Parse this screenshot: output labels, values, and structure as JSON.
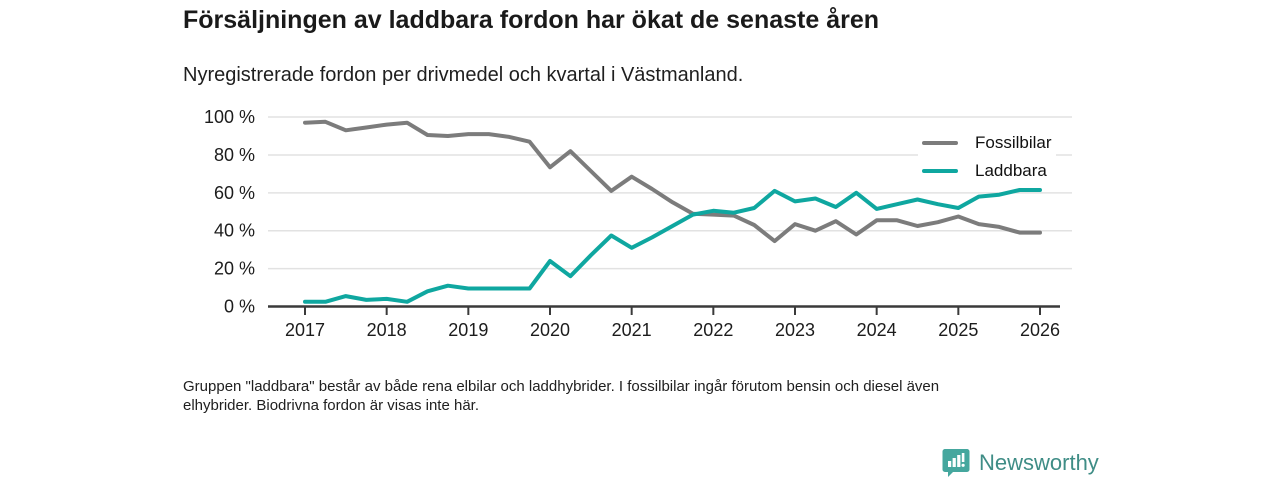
{
  "header": {
    "title": "Försäljningen av laddbara fordon har ökat de senaste åren",
    "subtitle": "Nyregistrerade fordon per drivmedel och kvartal i Västmanland."
  },
  "chart_data": {
    "type": "line",
    "title": "Försäljningen av laddbara fordon har ökat de senaste åren",
    "subtitle": "Nyregistrerade fordon per drivmedel och kvartal i Västmanland.",
    "x_unit": "quarter",
    "x_start": "2017 Q1",
    "x_end": "2026 Q1",
    "ylim": [
      0,
      100
    ],
    "grid": true,
    "legend_position": "top-right",
    "y_ticks": [
      {
        "value": 0,
        "label": "0 %"
      },
      {
        "value": 20,
        "label": "20 %"
      },
      {
        "value": 40,
        "label": "40 %"
      },
      {
        "value": 60,
        "label": "60 %"
      },
      {
        "value": 80,
        "label": "80 %"
      },
      {
        "value": 100,
        "label": "100 %"
      }
    ],
    "x_ticks": [
      {
        "index": 0,
        "label": "2017"
      },
      {
        "index": 4,
        "label": "2018"
      },
      {
        "index": 8,
        "label": "2019"
      },
      {
        "index": 12,
        "label": "2020"
      },
      {
        "index": 16,
        "label": "2021"
      },
      {
        "index": 20,
        "label": "2022"
      },
      {
        "index": 24,
        "label": "2023"
      },
      {
        "index": 28,
        "label": "2024"
      },
      {
        "index": 32,
        "label": "2025"
      },
      {
        "index": 36,
        "label": "2026"
      }
    ],
    "series": [
      {
        "id": "fossilbilar",
        "name": "Fossilbilar",
        "color": "#7c7c7c",
        "values": [
          97,
          97.5,
          93,
          94.5,
          96,
          97,
          90.5,
          90,
          91,
          91,
          89.5,
          87,
          73.5,
          82,
          71.5,
          61,
          68.5,
          62,
          55,
          49,
          48.5,
          48,
          43,
          34.5,
          43.5,
          40,
          45,
          38,
          45.5,
          45.5,
          42.5,
          44.5,
          47.5,
          43.5,
          42,
          39,
          39
        ]
      },
      {
        "id": "laddbara",
        "name": "Laddbara",
        "color": "#0fa7a0",
        "values": [
          2.5,
          2.5,
          5.5,
          3.5,
          4,
          2.5,
          8,
          11,
          9.5,
          9.5,
          9.5,
          9.5,
          24,
          16,
          27,
          37.5,
          31,
          36.5,
          42.5,
          48.5,
          50.5,
          49.5,
          52,
          61,
          55.5,
          57,
          52.5,
          60,
          51.5,
          54,
          56.5,
          54,
          52,
          58,
          59,
          61.5,
          61.5
        ]
      }
    ],
    "axis_color": "#3a3a3a",
    "gridline_color": "#e2e2e2"
  },
  "footnote": {
    "line1": "Gruppen \"laddbara\" består av både rena elbilar och laddhybrider. I fossilbilar ingår förutom bensin och diesel även",
    "line2": "elhybrider. Biodrivna fordon är visas inte här."
  },
  "branding": {
    "name": "Newsworthy",
    "icon_color": "#45a79e",
    "text_color": "#3f8d86"
  }
}
